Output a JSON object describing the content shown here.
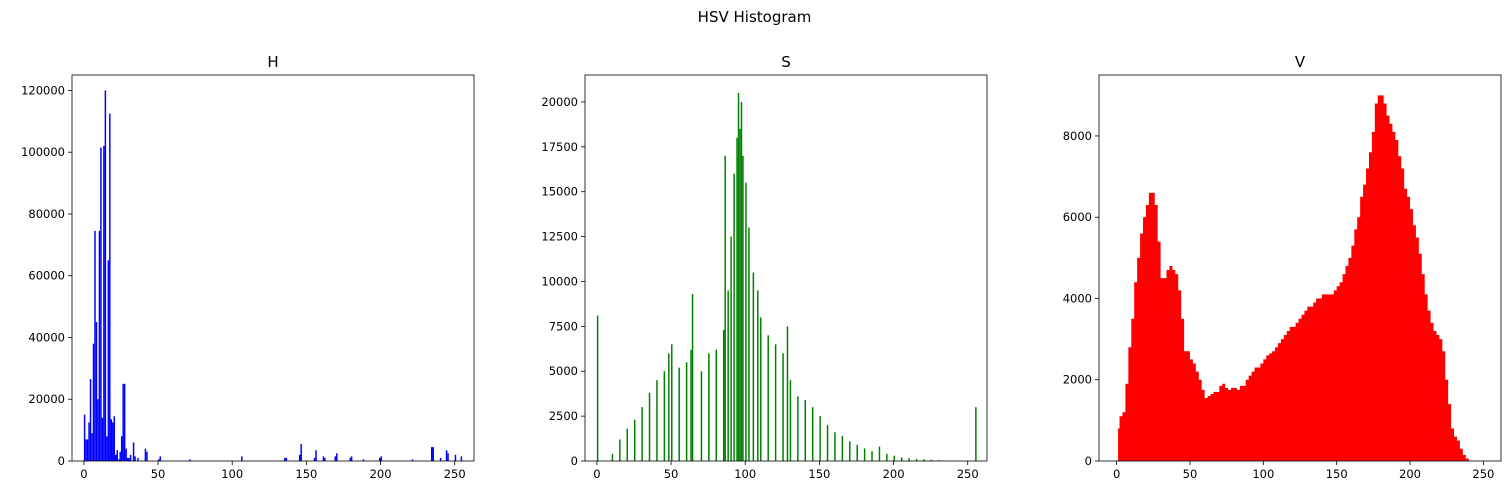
{
  "figure": {
    "title": "HSV Histogram"
  },
  "chart_data": [
    {
      "type": "bar",
      "title": "H",
      "color": "#0000ff",
      "xlim": [
        -8,
        263
      ],
      "ylim": [
        0,
        125000
      ],
      "xticks": [
        0,
        50,
        100,
        150,
        200,
        250
      ],
      "yticks": [
        0,
        20000,
        40000,
        60000,
        80000,
        100000,
        120000
      ],
      "x": [
        0,
        1,
        2,
        3,
        4,
        5,
        6,
        7,
        8,
        9,
        10,
        11,
        12,
        13,
        14,
        15,
        16,
        17,
        18,
        19,
        20,
        21,
        22,
        23,
        24,
        25,
        26,
        27,
        28,
        29,
        30,
        31,
        33,
        34,
        36,
        41,
        42,
        50,
        51,
        71,
        106,
        135,
        136,
        145,
        146,
        155,
        156,
        161,
        162,
        169,
        170,
        179,
        180,
        188,
        199,
        200,
        221,
        234,
        235,
        240,
        244,
        245,
        250,
        254
      ],
      "values": [
        15000,
        7000,
        7000,
        12500,
        26500,
        9000,
        38000,
        74500,
        45000,
        20000,
        74500,
        101500,
        14000,
        102000,
        120000,
        8000,
        65000,
        112500,
        13500,
        12500,
        14500,
        2000,
        3500,
        500,
        3000,
        8000,
        25000,
        25000,
        4000,
        1000,
        1000,
        2000,
        6000,
        1500,
        1000,
        4000,
        3000,
        500,
        1500,
        500,
        1500,
        1000,
        1000,
        2000,
        5500,
        1000,
        3500,
        1500,
        1000,
        1500,
        2500,
        1000,
        1500,
        500,
        1000,
        1500,
        500,
        4500,
        4500,
        1000,
        3500,
        2500,
        2000,
        1500
      ]
    },
    {
      "type": "bar",
      "title": "S",
      "color": "#008000",
      "xlim": [
        -8,
        263
      ],
      "ylim": [
        0,
        21500
      ],
      "xticks": [
        0,
        50,
        100,
        150,
        200,
        250
      ],
      "yticks": [
        0,
        2500,
        5000,
        7500,
        10000,
        12500,
        15000,
        17500,
        20000
      ],
      "x": [
        0,
        5,
        10,
        15,
        20,
        25,
        30,
        35,
        40,
        45,
        48,
        50,
        55,
        60,
        63,
        64,
        70,
        75,
        80,
        85,
        86,
        88,
        90,
        92,
        94,
        95,
        96,
        97,
        98,
        100,
        102,
        105,
        108,
        110,
        115,
        120,
        125,
        128,
        130,
        135,
        140,
        145,
        150,
        155,
        160,
        165,
        170,
        175,
        180,
        185,
        190,
        195,
        200,
        205,
        210,
        215,
        220,
        225,
        230,
        235,
        240,
        245,
        250,
        255
      ],
      "values": [
        8100,
        0,
        400,
        1200,
        1800,
        2300,
        3000,
        3800,
        4500,
        5000,
        6000,
        6500,
        5200,
        5500,
        6200,
        9300,
        5000,
        6000,
        6200,
        7300,
        17000,
        9500,
        12500,
        16000,
        18000,
        20500,
        18500,
        20000,
        17000,
        15500,
        13000,
        10500,
        9500,
        8000,
        7000,
        6500,
        6000,
        7500,
        4500,
        3600,
        3400,
        3000,
        2500,
        2000,
        1600,
        1400,
        1100,
        900,
        700,
        550,
        800,
        400,
        300,
        200,
        160,
        120,
        100,
        70,
        50,
        30,
        20,
        10,
        5,
        3000
      ]
    },
    {
      "type": "area",
      "title": "V",
      "color": "#ff0000",
      "xlim": [
        -12,
        262
      ],
      "ylim": [
        0,
        9500
      ],
      "xticks": [
        0,
        50,
        100,
        150,
        200,
        250
      ],
      "yticks": [
        0,
        2000,
        4000,
        6000,
        8000
      ],
      "x": [
        0,
        1,
        2,
        4,
        6,
        8,
        10,
        12,
        14,
        16,
        18,
        20,
        22,
        24,
        26,
        28,
        30,
        32,
        34,
        36,
        38,
        40,
        42,
        44,
        46,
        48,
        50,
        52,
        54,
        56,
        58,
        60,
        62,
        64,
        66,
        68,
        70,
        72,
        74,
        76,
        78,
        80,
        82,
        84,
        86,
        88,
        90,
        92,
        94,
        96,
        98,
        100,
        102,
        104,
        106,
        108,
        110,
        112,
        114,
        116,
        118,
        120,
        122,
        124,
        126,
        128,
        130,
        132,
        134,
        136,
        138,
        140,
        142,
        144,
        146,
        148,
        150,
        152,
        154,
        156,
        158,
        160,
        162,
        164,
        166,
        168,
        170,
        172,
        174,
        176,
        178,
        180,
        182,
        184,
        186,
        188,
        190,
        192,
        194,
        196,
        198,
        200,
        202,
        204,
        206,
        208,
        210,
        212,
        214,
        216,
        218,
        220,
        222,
        224,
        226,
        228,
        230,
        232,
        234,
        236,
        238,
        240,
        241
      ],
      "values": [
        0,
        800,
        1100,
        1200,
        1900,
        2800,
        3500,
        4400,
        5000,
        5600,
        6000,
        6300,
        6600,
        6600,
        6300,
        5400,
        4500,
        4500,
        4700,
        4800,
        4700,
        4600,
        4200,
        3500,
        2700,
        2700,
        2500,
        2400,
        2200,
        2000,
        1750,
        1550,
        1600,
        1650,
        1700,
        1700,
        1850,
        1900,
        1800,
        1750,
        1800,
        1800,
        1750,
        1850,
        1850,
        2000,
        2100,
        2200,
        2300,
        2300,
        2400,
        2500,
        2600,
        2650,
        2700,
        2800,
        2900,
        3000,
        3100,
        3200,
        3300,
        3300,
        3400,
        3500,
        3600,
        3700,
        3800,
        3800,
        3900,
        4000,
        4000,
        4100,
        4100,
        4100,
        4100,
        4200,
        4300,
        4400,
        4600,
        4800,
        5000,
        5300,
        5700,
        6000,
        6500,
        6800,
        7200,
        7600,
        8100,
        8800,
        9000,
        9000,
        8800,
        8500,
        8300,
        8100,
        7900,
        7500,
        7200,
        6700,
        6500,
        6200,
        5800,
        5500,
        5100,
        4600,
        4100,
        3700,
        3400,
        3200,
        3100,
        3000,
        2700,
        2000,
        1400,
        800,
        600,
        500,
        300,
        150,
        60,
        10,
        0
      ]
    }
  ]
}
